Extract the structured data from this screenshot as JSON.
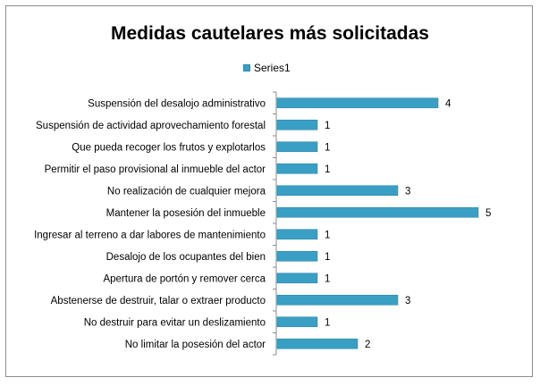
{
  "chart_data": {
    "type": "bar",
    "orientation": "horizontal",
    "title": "Medidas cautelares más solicitadas",
    "categories": [
      "Suspensión del desalojo administrativo",
      "Suspensión de actividad aprovechamiento forestal",
      "Que pueda recoger los frutos y explotarlos",
      "Permitir el paso provisional al inmueble del actor",
      "No realización de cualquier mejora",
      "Mantener la posesión del inmueble",
      "Ingresar al terreno a dar labores de mantenimiento",
      "Desalojo de los ocupantes del bien",
      "Apertura de portón y remover cerca",
      "Abstenerse de destruir, talar o extraer producto",
      "No destruir para evitar un deslizamiento",
      "No limitar la posesión del actor"
    ],
    "series": [
      {
        "name": "Series1",
        "values": [
          4,
          1,
          1,
          1,
          3,
          5,
          1,
          1,
          1,
          3,
          1,
          2
        ]
      }
    ],
    "xlim": [
      0,
      5
    ],
    "legend": "top",
    "grid": false,
    "data_labels": true,
    "bar_color": "#3a9fc4"
  }
}
